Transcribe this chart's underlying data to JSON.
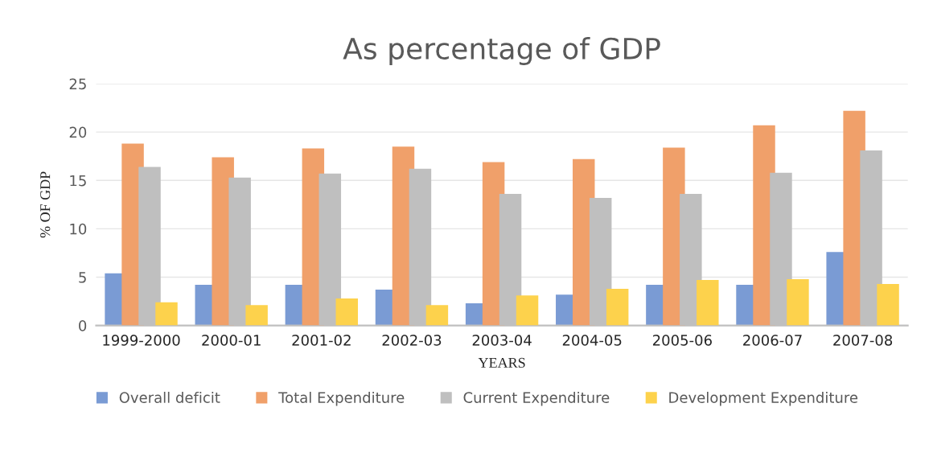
{
  "chart_data": {
    "type": "bar",
    "title": "As percentage of GDP",
    "xlabel": "YEARS",
    "ylabel": "% OF GDP",
    "categories": [
      "1999-2000",
      "2000-01",
      "2001-02",
      "2002-03",
      "2003-04",
      "2004-05",
      "2005-06",
      "2006-07",
      "2007-08"
    ],
    "series": [
      {
        "name": "Overall deficit",
        "color": "#7a9bd4",
        "values": [
          5.4,
          4.2,
          4.2,
          3.7,
          2.3,
          3.2,
          4.2,
          4.2,
          7.6
        ]
      },
      {
        "name": "Total Expenditure",
        "color": "#f0a06a",
        "values": [
          18.8,
          17.4,
          18.3,
          18.5,
          16.9,
          17.2,
          18.4,
          20.7,
          22.2
        ]
      },
      {
        "name": "Current Expenditure",
        "color": "#bfbfbf",
        "values": [
          16.4,
          15.3,
          15.7,
          16.2,
          13.6,
          13.2,
          13.6,
          15.8,
          18.1
        ]
      },
      {
        "name": "Development Expenditure",
        "color": "#fdd24c",
        "values": [
          2.4,
          2.1,
          2.8,
          2.1,
          3.1,
          3.8,
          4.7,
          4.8,
          4.3
        ]
      }
    ],
    "ylim": [
      0,
      25
    ],
    "yticks": [
      0,
      5,
      10,
      15,
      20,
      25
    ],
    "grid": "y",
    "legend": "bottom"
  }
}
